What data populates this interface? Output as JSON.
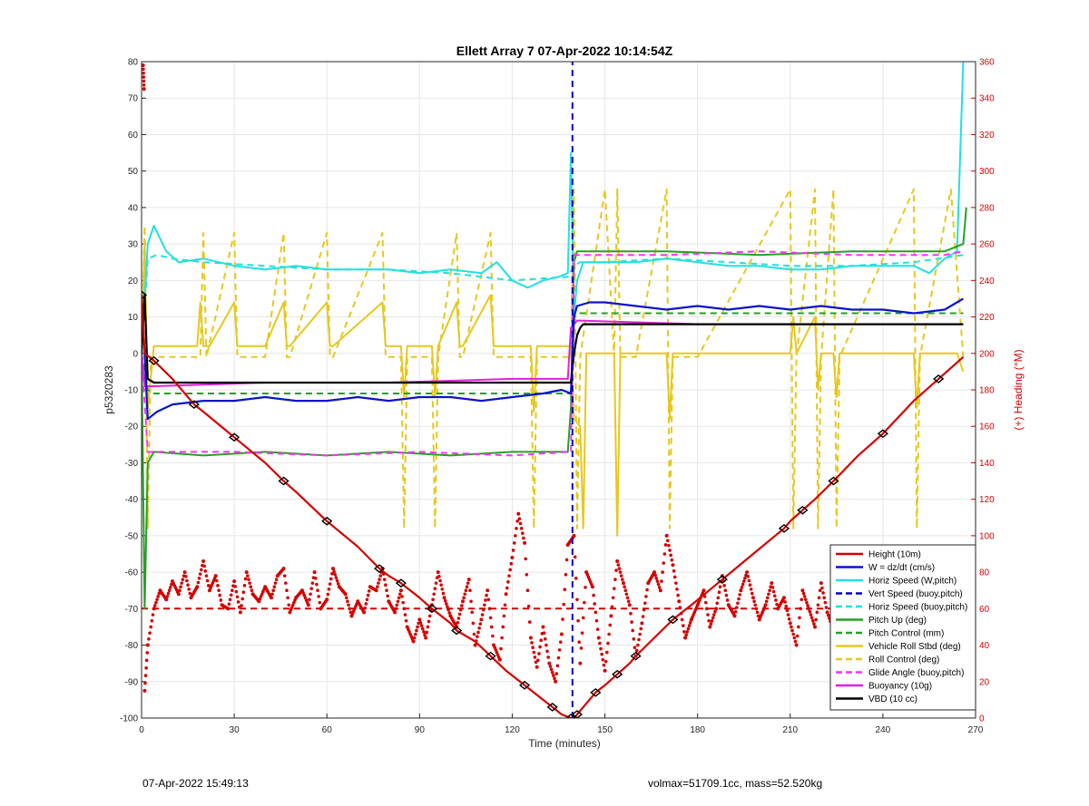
{
  "footer": {
    "left": "07-Apr-2022 15:49:13",
    "right": "volmax=51709.1cc, mass=52.520kg"
  },
  "chart_data": {
    "type": "line",
    "title": "Ellett Array 7 07-Apr-2022 10:14:54Z",
    "xlabel": "Time (minutes)",
    "ylabel": "p5320283",
    "y2label": "(+) Heading (°M)",
    "xlim": [
      0,
      270
    ],
    "ylim": [
      -100,
      80
    ],
    "y2lim": [
      0,
      360
    ],
    "xticks": [
      0,
      30,
      60,
      90,
      120,
      150,
      180,
      210,
      240,
      270
    ],
    "yticks": [
      -100,
      -90,
      -80,
      -70,
      -60,
      -50,
      -40,
      -30,
      -20,
      -10,
      0,
      10,
      20,
      30,
      40,
      50,
      60,
      70,
      80
    ],
    "y2ticks": [
      0,
      20,
      40,
      60,
      80,
      100,
      120,
      140,
      160,
      180,
      200,
      220,
      240,
      260,
      280,
      300,
      320,
      340,
      360
    ],
    "grid": true,
    "legend_position": "bottom-right",
    "colors": {
      "height": "#d40000",
      "w": "#0a14c8",
      "horiz": "#22e0e0",
      "vert": "#0000cc",
      "pitch": "#24a024",
      "roll": "#e6c81e",
      "glide": "#ff30ff",
      "buoy": "#e020e0",
      "vbd": "#000000",
      "heading": "#d40000"
    },
    "series": [
      {
        "key": "height",
        "name": "Height (10m)",
        "style": "solid",
        "axis": "left",
        "x": [
          0,
          1,
          4,
          10,
          17,
          20,
          30,
          40,
          46,
          50,
          60,
          70,
          77,
          80,
          84,
          90,
          94,
          100,
          102,
          108,
          113,
          118,
          124,
          130,
          133,
          136,
          139,
          140,
          141,
          143,
          147,
          150,
          154,
          158,
          160,
          166,
          172,
          178,
          188,
          198,
          208,
          210,
          214,
          218,
          224,
          232,
          240,
          250,
          258,
          266
        ],
        "y": [
          16,
          0,
          -2,
          -7,
          -14,
          -16,
          -23,
          -30,
          -35,
          -38,
          -46,
          -53,
          -59,
          -61,
          -63,
          -67,
          -70,
          -74,
          -76,
          -79,
          -83,
          -87,
          -91,
          -95,
          -97,
          -99,
          -100,
          -100,
          -99,
          -97,
          -93,
          -91,
          -88,
          -85,
          -83,
          -78,
          -73,
          -69,
          -62,
          -55,
          -48,
          -46,
          -43,
          -40,
          -35,
          -28,
          -22,
          -13,
          -7,
          -1
        ]
      },
      {
        "key": "w",
        "name": "W = dz/dt (cm/s)",
        "style": "solid",
        "axis": "left",
        "x": [
          1,
          2,
          5,
          10,
          20,
          30,
          40,
          50,
          60,
          70,
          80,
          90,
          100,
          110,
          120,
          130,
          136,
          139,
          140,
          141,
          145,
          150,
          160,
          170,
          180,
          190,
          200,
          210,
          220,
          230,
          240,
          250,
          260,
          266
        ],
        "y": [
          0,
          -18,
          -16,
          -14,
          -13,
          -13,
          -12,
          -13,
          -13,
          -12,
          -13,
          -12,
          -12,
          -13,
          -12,
          -11,
          -10,
          -11,
          10,
          13,
          14,
          14,
          13,
          12,
          13,
          12,
          13,
          12,
          13,
          12,
          12,
          11,
          12,
          15
        ]
      },
      {
        "key": "horiz",
        "name": "Horiz Speed (W,pitch)",
        "style": "solid",
        "axis": "left",
        "x": [
          0,
          2,
          4,
          8,
          12,
          20,
          30,
          40,
          50,
          60,
          70,
          80,
          90,
          100,
          110,
          115,
          120,
          125,
          130,
          135,
          138,
          139,
          140,
          141,
          143,
          150,
          160,
          170,
          180,
          190,
          200,
          210,
          220,
          230,
          240,
          250,
          255,
          260,
          264,
          266
        ],
        "y": [
          0,
          30,
          35,
          28,
          25,
          26,
          24,
          23,
          24,
          23,
          23,
          23,
          22,
          23,
          22,
          25,
          20,
          18,
          20,
          21,
          22,
          55,
          10,
          20,
          25,
          25,
          25,
          26,
          25,
          24,
          24,
          23,
          23,
          24,
          24,
          24,
          22,
          26,
          28,
          80
        ]
      },
      {
        "key": "vert",
        "name": "Vert Speed (buoy,pitch)",
        "style": "dashed",
        "axis": "left",
        "x": [
          139.5,
          139.5
        ],
        "y": [
          -100,
          80
        ]
      },
      {
        "key": "horiz2",
        "name": "Horiz Speed (buoy,pitch)",
        "style": "dashed",
        "axis": "left",
        "x": [
          0,
          2,
          5,
          10,
          20,
          40,
          60,
          80,
          100,
          120,
          138,
          140,
          142,
          150,
          170,
          190,
          210,
          230,
          250,
          266
        ],
        "y": [
          0,
          26,
          27,
          26,
          25,
          24,
          23,
          23,
          22,
          20,
          21,
          24,
          25,
          25,
          26,
          25,
          24,
          24,
          25,
          27
        ]
      },
      {
        "key": "pitch",
        "name": "Pitch Up (deg)",
        "style": "solid",
        "axis": "left",
        "x": [
          0,
          1,
          2,
          4,
          20,
          40,
          60,
          80,
          100,
          120,
          138,
          139,
          140,
          141,
          145,
          170,
          200,
          230,
          260,
          266,
          267
        ],
        "y": [
          0,
          -70,
          -30,
          -27,
          -28,
          -27,
          -28,
          -27,
          -28,
          -27,
          -27,
          -15,
          25,
          28,
          28,
          28,
          27,
          28,
          28,
          30,
          40
        ]
      },
      {
        "key": "pitchctl",
        "name": "Pitch Control (mm)",
        "style": "dashed",
        "axis": "left",
        "x": [
          0,
          2,
          4,
          30,
          60,
          90,
          120,
          138,
          139,
          140,
          142,
          160,
          190,
          220,
          250,
          266
        ],
        "y": [
          0,
          -10,
          -11,
          -11,
          -11,
          -11,
          -11,
          -11,
          -11,
          10,
          11,
          11,
          11,
          11,
          11,
          11
        ]
      },
      {
        "key": "roll",
        "name": "Vehicle Roll Stbd (deg)",
        "style": "solid",
        "axis": "left",
        "x": [
          0,
          1,
          2,
          4,
          10,
          18,
          19,
          20,
          21,
          22,
          30,
          31,
          32,
          40,
          46,
          47,
          48,
          60,
          61,
          62,
          78,
          79,
          80,
          84,
          85,
          86,
          94,
          95,
          96,
          102,
          103,
          104,
          113,
          114,
          115,
          126,
          127,
          128,
          135,
          138,
          139,
          140,
          142,
          143,
          144,
          150,
          153,
          154,
          155,
          160,
          170,
          171,
          172,
          180,
          210,
          211,
          212,
          218,
          219,
          220,
          224,
          225,
          226,
          250,
          251,
          252,
          262,
          264,
          266
        ],
        "y": [
          0,
          30,
          -15,
          2,
          2,
          2,
          14,
          2,
          2,
          2,
          14,
          2,
          2,
          2,
          14,
          2,
          2,
          14,
          2,
          2,
          14,
          2,
          2,
          2,
          -12,
          2,
          2,
          -12,
          2,
          14,
          2,
          2,
          16,
          2,
          2,
          2,
          -16,
          2,
          2,
          2,
          2,
          -18,
          -20,
          -48,
          0,
          0,
          0,
          -50,
          0,
          0,
          0,
          -18,
          0,
          0,
          0,
          10,
          0,
          10,
          -10,
          0,
          0,
          -12,
          0,
          0,
          -15,
          0,
          0,
          0,
          -5
        ]
      },
      {
        "key": "rollctl",
        "name": "Roll Control (deg)",
        "style": "dashed",
        "axis": "left",
        "x": [
          0,
          1,
          2,
          3,
          19,
          20,
          21,
          30,
          31,
          32,
          40,
          46,
          47,
          48,
          60,
          61,
          62,
          78,
          79,
          80,
          84,
          85,
          86,
          94,
          95,
          96,
          102,
          103,
          104,
          113,
          114,
          115,
          126,
          127,
          128,
          139,
          140,
          141,
          142,
          150,
          153,
          154,
          155,
          160,
          170,
          171,
          172,
          180,
          210,
          211,
          212,
          218,
          219,
          220,
          224,
          225,
          226,
          250,
          251,
          252,
          262,
          266
        ],
        "y": [
          0,
          35,
          -48,
          -1,
          -1,
          33,
          -1,
          33,
          -1,
          -1,
          -1,
          33,
          -1,
          -1,
          33,
          -1,
          -1,
          33,
          -1,
          -1,
          -1,
          -48,
          -1,
          -1,
          -48,
          -1,
          33,
          -1,
          -1,
          33,
          -1,
          -1,
          -1,
          -48,
          -1,
          -1,
          45,
          -48,
          -1,
          45,
          -1,
          45,
          -1,
          -1,
          45,
          -48,
          -1,
          -1,
          45,
          -48,
          -1,
          45,
          -48,
          -1,
          45,
          -48,
          -1,
          45,
          -48,
          -1,
          45,
          -1
        ]
      },
      {
        "key": "glide",
        "name": "Glide Angle (buoy,pitch)",
        "style": "dashed",
        "axis": "left",
        "x": [
          0,
          2,
          4,
          30,
          60,
          90,
          120,
          138,
          139,
          140,
          142,
          170,
          200,
          230,
          260,
          266
        ],
        "y": [
          0,
          -27,
          -27,
          -27,
          -28,
          -27,
          -28,
          -27,
          -27,
          27,
          27,
          27,
          28,
          27,
          27,
          28
        ]
      },
      {
        "key": "buoy",
        "name": "Buoyancy (10g)",
        "style": "solid",
        "axis": "left",
        "x": [
          0,
          1,
          2,
          4,
          40,
          80,
          120,
          137,
          138,
          139,
          140,
          141,
          142,
          180,
          220,
          260,
          266
        ],
        "y": [
          0,
          -9,
          -9,
          -9,
          -8,
          -8,
          -7,
          -7,
          -7,
          7,
          8,
          9,
          9,
          8,
          8,
          8,
          8
        ]
      },
      {
        "key": "vbd",
        "name": "VBD (10 cc)",
        "style": "solid",
        "axis": "left",
        "x": [
          0,
          1,
          2,
          4,
          40,
          80,
          120,
          137,
          138,
          139,
          140,
          141,
          142,
          143,
          180,
          220,
          260,
          266
        ],
        "y": [
          0,
          16,
          -7,
          -8,
          -8,
          -8,
          -8,
          -8,
          -8,
          -8,
          0,
          5,
          7,
          8,
          8,
          8,
          8,
          8
        ]
      },
      {
        "key": "heading",
        "name": "",
        "style": "dotted",
        "axis": "right",
        "x": [
          0.5,
          0.8,
          1,
          2,
          4,
          6,
          8,
          10,
          12,
          14,
          16,
          18,
          20,
          22,
          24,
          26,
          28,
          30,
          32,
          34,
          36,
          38,
          40,
          42,
          44,
          46,
          48,
          50,
          52,
          54,
          56,
          58,
          60,
          62,
          64,
          66,
          68,
          70,
          72,
          74,
          76,
          78,
          80,
          82,
          84,
          86,
          88,
          90,
          92,
          94,
          96,
          98,
          100,
          102,
          104,
          106,
          108,
          110,
          112,
          114,
          116,
          118,
          120,
          122,
          124,
          126,
          128,
          130,
          132,
          134,
          136,
          138,
          140,
          142,
          144,
          146,
          148,
          150,
          152,
          154,
          156,
          158,
          160,
          162,
          164,
          166,
          168,
          170,
          172,
          174,
          176,
          178,
          180,
          182,
          184,
          186,
          188,
          190,
          192,
          194,
          196,
          198,
          200,
          202,
          204,
          206,
          208,
          210,
          212,
          214,
          216,
          218,
          220,
          222,
          224,
          226,
          228,
          230,
          232,
          234,
          236,
          238,
          240,
          242,
          244,
          246,
          248,
          250,
          252,
          254,
          256,
          258,
          260,
          262,
          264,
          266,
          268,
          270
        ],
        "y": [
          358,
          345,
          15,
          40,
          60,
          70,
          65,
          75,
          68,
          80,
          66,
          72,
          86,
          70,
          78,
          62,
          60,
          75,
          58,
          80,
          68,
          64,
          72,
          66,
          78,
          82,
          58,
          66,
          70,
          62,
          80,
          60,
          65,
          82,
          72,
          68,
          56,
          64,
          58,
          72,
          70,
          82,
          64,
          58,
          70,
          50,
          42,
          54,
          44,
          62,
          80,
          66,
          56,
          50,
          64,
          76,
          40,
          54,
          70,
          40,
          32,
          68,
          88,
          112,
          96,
          44,
          28,
          50,
          30,
          20,
          46,
          95,
          100,
          30,
          80,
          72,
          44,
          26,
          56,
          86,
          74,
          62,
          34,
          52,
          74,
          80,
          70,
          100,
          84,
          64,
          44,
          54,
          62,
          70,
          50,
          60,
          78,
          62,
          56,
          70,
          80,
          66,
          54,
          62,
          74,
          60,
          66,
          52,
          40,
          70,
          60,
          50,
          74,
          58,
          48,
          66,
          78,
          56,
          66,
          48,
          60,
          44,
          72,
          60,
          54,
          62,
          44,
          58,
          70,
          64,
          54,
          66,
          78,
          70,
          56,
          72,
          42,
          68
        ]
      },
      {
        "key": "headingctl",
        "name": "",
        "style": "dashed",
        "axis": "right",
        "x": [
          0,
          270
        ],
        "y": [
          60,
          60
        ]
      }
    ]
  }
}
